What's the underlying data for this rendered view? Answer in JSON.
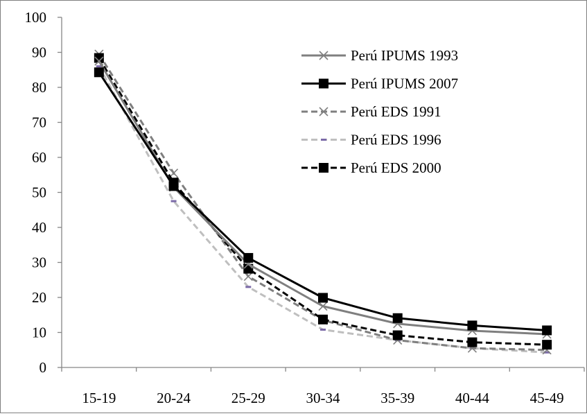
{
  "chart_data": {
    "type": "line",
    "categories": [
      "15-19",
      "20-24",
      "25-29",
      "30-34",
      "35-39",
      "40-44",
      "45-49"
    ],
    "ylim": [
      0,
      100
    ],
    "yticks": [
      0,
      10,
      20,
      30,
      40,
      50,
      60,
      70,
      80,
      90,
      100
    ],
    "grid": false,
    "legend_position": "top-right",
    "series": [
      {
        "name": "Perú IPUMS 1993",
        "values": [
          87.5,
          51.5,
          29.5,
          17.5,
          12.5,
          10.5,
          9.5
        ],
        "color": "#7f7f7f",
        "dash": "solid",
        "marker": "x"
      },
      {
        "name": "Perú IPUMS 2007",
        "values": [
          84.3,
          51.8,
          31.3,
          19.9,
          14.1,
          12.0,
          10.6
        ],
        "color": "#000000",
        "dash": "solid",
        "marker": "square"
      },
      {
        "name": "Perú EDS 1991",
        "values": [
          89.5,
          55.5,
          26.0,
          13.5,
          7.8,
          5.5,
          5.0
        ],
        "color": "#7f7f7f",
        "dash": "dashed",
        "marker": "x"
      },
      {
        "name": "Perú EDS 1996",
        "values": [
          86.0,
          47.5,
          23.0,
          10.8,
          7.8,
          5.5,
          4.3
        ],
        "color": "#bfbfbf",
        "dash": "dashed",
        "marker": "dash"
      },
      {
        "name": "Perú EDS 2000",
        "values": [
          88.4,
          52.8,
          28.2,
          13.7,
          9.2,
          7.2,
          6.5
        ],
        "color": "#000000",
        "dash": "dashed",
        "marker": "square"
      }
    ]
  }
}
